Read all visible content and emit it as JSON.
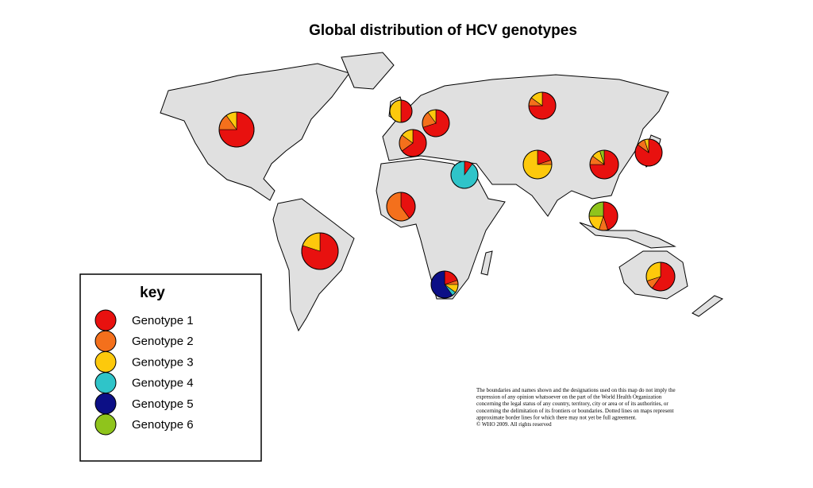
{
  "title": "Global distribution of HCV genotypes",
  "legend": {
    "title": "key",
    "items": [
      {
        "label": "Genotype 1",
        "color": "#e8110f"
      },
      {
        "label": "Genotype 2",
        "color": "#f4701c"
      },
      {
        "label": "Genotype 3",
        "color": "#fdc90c"
      },
      {
        "label": "Genotype 4",
        "color": "#2fc4c9"
      },
      {
        "label": "Genotype 5",
        "color": "#0c0f86"
      },
      {
        "label": "Genotype 6",
        "color": "#8fc41c"
      }
    ]
  },
  "pies": [
    {
      "values": [
        75,
        15,
        10,
        0,
        0,
        0
      ]
    },
    {
      "values": [
        50,
        0,
        50,
        0,
        0,
        0
      ]
    },
    {
      "values": [
        70,
        20,
        10,
        0,
        0,
        0
      ]
    },
    {
      "values": [
        65,
        20,
        15,
        0,
        0,
        0
      ]
    },
    {
      "values": [
        75,
        10,
        15,
        0,
        0,
        0
      ]
    },
    {
      "values": [
        85,
        10,
        5,
        0,
        0,
        0
      ]
    },
    {
      "values": [
        75,
        10,
        10,
        0,
        0,
        5
      ]
    },
    {
      "values": [
        10,
        0,
        0,
        90,
        0,
        0
      ]
    },
    {
      "values": [
        20,
        5,
        75,
        0,
        0,
        0
      ]
    },
    {
      "values": [
        45,
        10,
        20,
        0,
        0,
        25
      ]
    },
    {
      "values": [
        40,
        60,
        0,
        0,
        0,
        0
      ]
    },
    {
      "values": [
        80,
        0,
        20,
        0,
        0,
        0
      ]
    },
    {
      "values": [
        20,
        5,
        10,
        5,
        60,
        0
      ]
    },
    {
      "values": [
        60,
        10,
        30,
        0,
        0,
        0
      ]
    }
  ],
  "disclaimer": [
    "The boundaries and names shown and the designations used on this map do not imply the",
    "expression of any opinion whatsoever on the part of the World Health Organization",
    "concerning the legal status of any country, territory, city or area or of its authorities, or",
    "concerning the delimitation of its frontiers or boundaries.  Dotted lines on maps represent",
    "approximate border lines for which there may not yet be full agreement.",
    "© WHO 2009. All rights reserved"
  ]
}
